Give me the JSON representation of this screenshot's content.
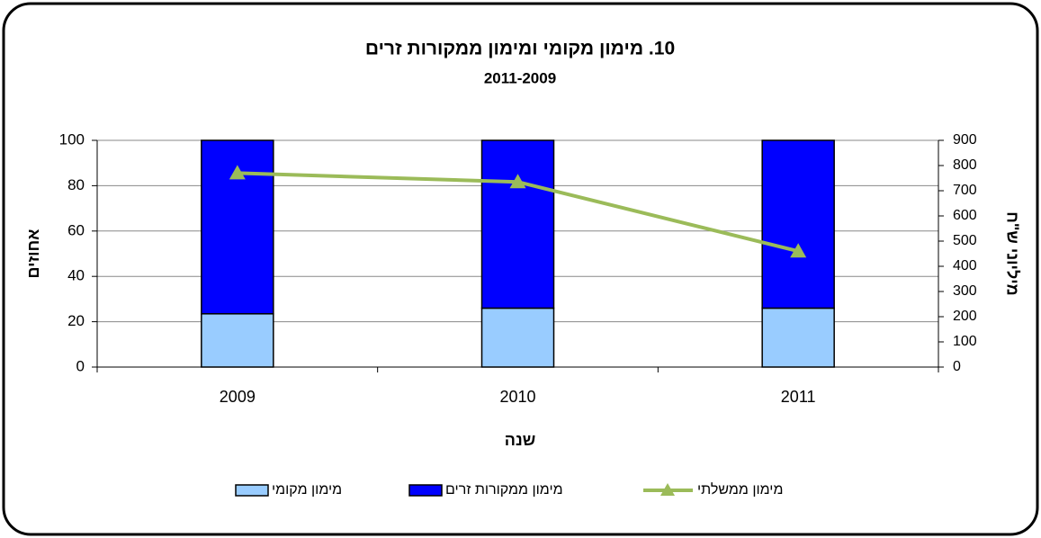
{
  "chart_data": {
    "type": "bar",
    "stacked": true,
    "title": "10. מימון מקומי ומימון ממקורות זרים",
    "subtitle": "2011-2009",
    "x_label": "שנה",
    "y_label": "אחוזים",
    "y2_label": "מיליוני ש\"ח",
    "categories": [
      "2009",
      "2010",
      "2011"
    ],
    "series": [
      {
        "name": "מימון מקומי",
        "color": "#99ccff",
        "values": [
          23.5,
          26,
          26
        ]
      },
      {
        "name": "מימון ממקורות זרים",
        "color": "#0000ff",
        "values": [
          76.5,
          74,
          74
        ]
      },
      {
        "name": "מימון ממשלתי",
        "color": "#9bbb59",
        "type": "line",
        "axis": "y2",
        "values": [
          770,
          735,
          460
        ]
      }
    ],
    "ylim": [
      0,
      100
    ],
    "yticks": [
      0,
      20,
      40,
      60,
      80,
      100
    ],
    "y2lim": [
      0,
      900
    ],
    "y2ticks": [
      0,
      100,
      200,
      300,
      400,
      500,
      600,
      700,
      800,
      900
    ],
    "grid": true
  }
}
